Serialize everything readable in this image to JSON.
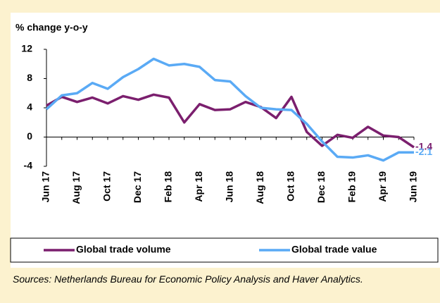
{
  "chart_data": {
    "type": "line",
    "title": "% change y-o-y",
    "categories": [
      "Jun 17",
      null,
      "Aug 17",
      null,
      "Oct 17",
      null,
      "Dec 17",
      null,
      "Feb 18",
      null,
      "Apr 18",
      null,
      "Jun 18",
      null,
      "Aug 18",
      null,
      "Oct 18",
      null,
      "Dec 18",
      null,
      "Feb 19",
      null,
      "Apr 19",
      null,
      "Jun 19"
    ],
    "series": [
      {
        "name": "Global trade volume",
        "color": "#7b1f6e",
        "values": [
          4.3,
          5.5,
          4.8,
          5.4,
          4.6,
          5.6,
          5.1,
          5.8,
          5.4,
          2.0,
          4.5,
          3.7,
          3.8,
          4.8,
          4.1,
          2.6,
          5.5,
          0.7,
          -1.2,
          0.3,
          -0.1,
          1.4,
          0.2,
          0.0,
          -1.4
        ]
      },
      {
        "name": "Global trade value",
        "color": "#5aaaf5",
        "values": [
          3.8,
          5.7,
          6.0,
          7.4,
          6.6,
          8.2,
          9.3,
          10.7,
          9.8,
          10.0,
          9.6,
          7.8,
          7.6,
          5.6,
          4.0,
          3.8,
          3.7,
          1.8,
          -0.6,
          -2.7,
          -2.8,
          -2.5,
          -3.2,
          -2.1,
          -2.1
        ]
      }
    ],
    "ylim": [
      -4,
      12
    ],
    "yticks": [
      -4,
      0,
      4,
      8,
      12
    ],
    "source": "Sources: Netherlands Bureau for Economic Policy Analysis and Haver Analytics."
  }
}
